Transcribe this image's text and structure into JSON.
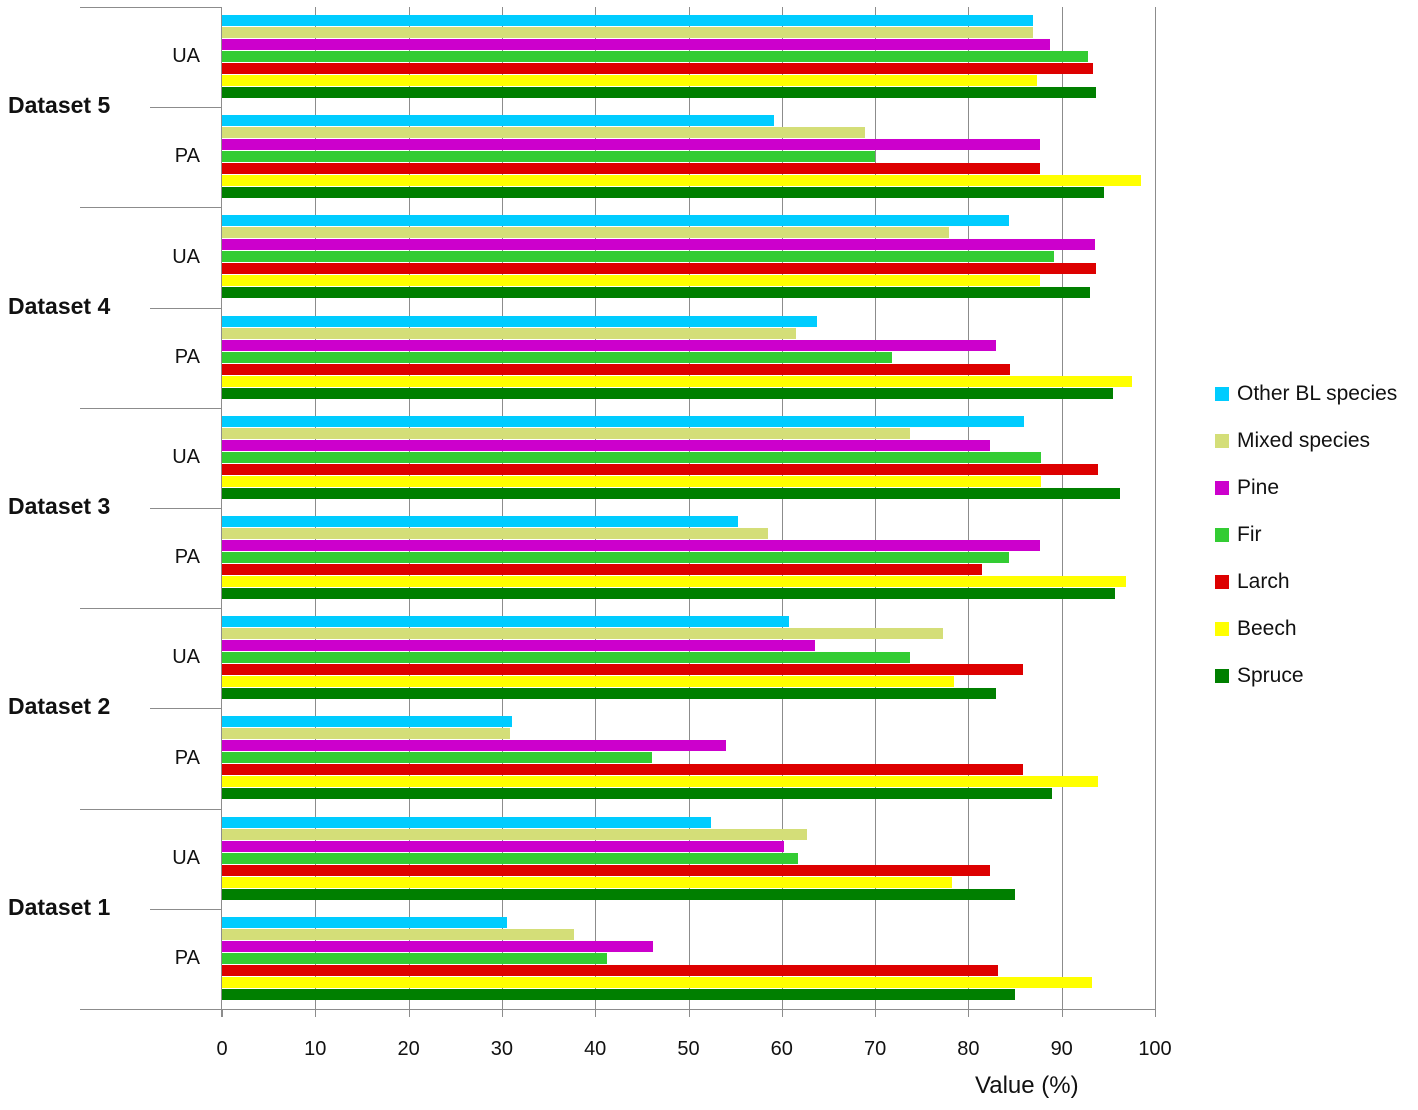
{
  "chart_data": {
    "type": "bar",
    "orientation": "horizontal",
    "title": "",
    "xlabel": "Value (%)",
    "ylabel": "",
    "xlim": [
      0,
      100
    ],
    "x_ticks": [
      0,
      10,
      20,
      30,
      40,
      50,
      60,
      70,
      80,
      90,
      100
    ],
    "grid": true,
    "legend_position": "right",
    "categories": [
      {
        "dataset": "Dataset 5",
        "metric": "UA"
      },
      {
        "dataset": "Dataset 5",
        "metric": "PA"
      },
      {
        "dataset": "Dataset 4",
        "metric": "UA"
      },
      {
        "dataset": "Dataset 4",
        "metric": "PA"
      },
      {
        "dataset": "Dataset 3",
        "metric": "UA"
      },
      {
        "dataset": "Dataset 3",
        "metric": "PA"
      },
      {
        "dataset": "Dataset 2",
        "metric": "UA"
      },
      {
        "dataset": "Dataset 2",
        "metric": "PA"
      },
      {
        "dataset": "Dataset 1",
        "metric": "UA"
      },
      {
        "dataset": "Dataset 1",
        "metric": "PA"
      }
    ],
    "series": [
      {
        "name": "Other BL species",
        "color": "#00ccff",
        "values": [
          86.9,
          59.2,
          84.4,
          63.8,
          86.0,
          55.3,
          60.8,
          31.1,
          52.4,
          30.6
        ]
      },
      {
        "name": "Mixed species",
        "color": "#d4de78",
        "values": [
          86.9,
          68.9,
          77.9,
          61.5,
          73.7,
          58.5,
          77.3,
          30.9,
          62.7,
          37.7
        ]
      },
      {
        "name": "Pine",
        "color": "#cc00cc",
        "values": [
          88.7,
          87.7,
          93.6,
          83.0,
          82.3,
          87.7,
          63.6,
          54.0,
          60.2,
          46.2
        ]
      },
      {
        "name": "Fir",
        "color": "#33cc33",
        "values": [
          92.8,
          70.0,
          89.2,
          71.8,
          87.8,
          84.3,
          73.7,
          46.1,
          61.7,
          41.3
        ]
      },
      {
        "name": "Larch",
        "color": "#dd0000",
        "values": [
          93.4,
          87.7,
          93.7,
          84.5,
          93.9,
          81.5,
          85.9,
          85.9,
          82.3,
          83.2
        ]
      },
      {
        "name": "Beech",
        "color": "#ffff00",
        "values": [
          87.4,
          98.5,
          87.7,
          97.5,
          87.8,
          96.9,
          78.5,
          93.9,
          78.2,
          93.2
        ]
      },
      {
        "name": "Spruce",
        "color": "#007f00",
        "values": [
          93.7,
          94.5,
          93.0,
          95.5,
          96.2,
          95.7,
          83.0,
          89.0,
          85.0,
          85.0
        ]
      }
    ]
  },
  "axis": {
    "xlabel": "Value (%)",
    "ticks": [
      "0",
      "10",
      "20",
      "30",
      "40",
      "50",
      "60",
      "70",
      "80",
      "90",
      "100"
    ]
  },
  "groups": [
    {
      "label": "Dataset 5",
      "sub": [
        "UA",
        "PA"
      ]
    },
    {
      "label": "Dataset 4",
      "sub": [
        "UA",
        "PA"
      ]
    },
    {
      "label": "Dataset 3",
      "sub": [
        "UA",
        "PA"
      ]
    },
    {
      "label": "Dataset 2",
      "sub": [
        "UA",
        "PA"
      ]
    },
    {
      "label": "Dataset 1",
      "sub": [
        "UA",
        "PA"
      ]
    }
  ],
  "legend": [
    {
      "label": "Other BL species",
      "color": "#00ccff"
    },
    {
      "label": "Mixed species",
      "color": "#d4de78"
    },
    {
      "label": "Pine",
      "color": "#cc00cc"
    },
    {
      "label": "Fir",
      "color": "#33cc33"
    },
    {
      "label": "Larch",
      "color": "#dd0000"
    },
    {
      "label": "Beech",
      "color": "#ffff00"
    },
    {
      "label": "Spruce",
      "color": "#007f00"
    }
  ]
}
